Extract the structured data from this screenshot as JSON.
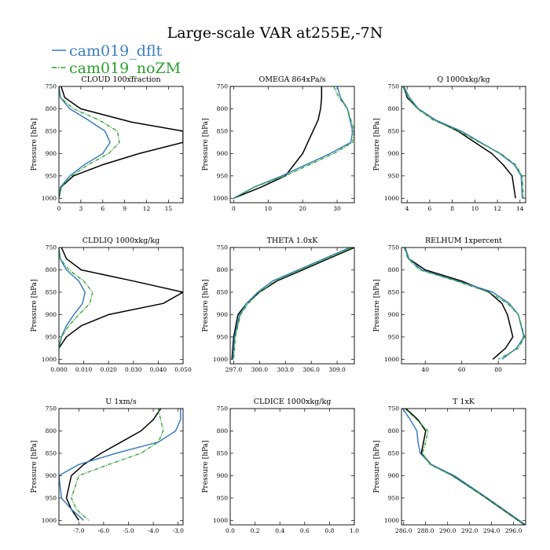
{
  "title": "Large-scale VAR at255E,-7N",
  "legend": [
    {
      "name": "cam019_dflt",
      "color": "#3a7dc0",
      "dash": ""
    },
    {
      "name": "cam019_noZM",
      "color": "#2ca02c",
      "dash": "6,2,1.5,2"
    }
  ],
  "colors": {
    "obs": "#000000",
    "dflt": "#3a7dc0",
    "noZM": "#2ca02c"
  },
  "chart_data": [
    {
      "type": "line",
      "title": "CLOUD 100xfraction",
      "ylabel": "Pressure [hPa]",
      "xlim": [
        0,
        17
      ],
      "ylim": [
        1010,
        750
      ],
      "invert_y": true,
      "xticks": [
        0,
        3,
        6,
        9,
        12,
        15
      ],
      "xtick_labels": [
        "0",
        "3",
        "6",
        "9",
        "12",
        "15"
      ],
      "yticks": [
        750,
        800,
        850,
        900,
        950,
        1000
      ],
      "series": [
        {
          "key": "obs",
          "x": [
            0.3,
            0.8,
            3.0,
            10,
            17,
            17,
            11,
            6,
            2,
            0.3,
            0
          ],
          "y": [
            750,
            775,
            800,
            830,
            850,
            875,
            900,
            925,
            950,
            975,
            1000
          ]
        },
        {
          "key": "dflt",
          "x": [
            0,
            0.2,
            1.5,
            4,
            6.3,
            7.0,
            6.0,
            3.5,
            1.5,
            0.2,
            0
          ],
          "y": [
            750,
            775,
            800,
            825,
            850,
            875,
            900,
            925,
            950,
            975,
            1000
          ]
        },
        {
          "key": "noZM",
          "x": [
            0,
            0.2,
            2.0,
            5.5,
            8.0,
            8.3,
            6.8,
            4.0,
            1.8,
            0.3,
            0
          ],
          "y": [
            750,
            775,
            800,
            825,
            850,
            875,
            900,
            925,
            950,
            975,
            1000
          ]
        }
      ]
    },
    {
      "type": "line",
      "title": "OMEGA 864xPa/s",
      "ylabel": "",
      "xlim": [
        -1,
        35
      ],
      "ylim": [
        1010,
        750
      ],
      "invert_y": true,
      "xticks": [
        0,
        10,
        20,
        30
      ],
      "xtick_labels": [
        "0",
        "10",
        "20",
        "30"
      ],
      "yticks": [
        750,
        800,
        850,
        900,
        950,
        1000
      ],
      "series": [
        {
          "key": "obs",
          "x": [
            25.5,
            25.5,
            25.2,
            24.5,
            23,
            20,
            15,
            8,
            0
          ],
          "y": [
            750,
            775,
            800,
            825,
            850,
            900,
            950,
            975,
            1000
          ]
        },
        {
          "key": "dflt",
          "x": [
            30,
            31,
            33,
            34.5,
            34,
            28,
            14,
            6,
            0
          ],
          "y": [
            750,
            775,
            800,
            850,
            875,
            900,
            950,
            975,
            1000
          ]
        },
        {
          "key": "noZM",
          "x": [
            29,
            30.5,
            33,
            35,
            34.5,
            29,
            15,
            6,
            0
          ],
          "y": [
            750,
            775,
            800,
            850,
            875,
            900,
            950,
            975,
            1000
          ]
        }
      ]
    },
    {
      "type": "line",
      "title": "Q 1000xkg/kg",
      "ylabel": "",
      "xlim": [
        3.5,
        14.5
      ],
      "ylim": [
        1010,
        750
      ],
      "invert_y": true,
      "xticks": [
        4,
        6,
        8,
        10,
        12,
        14
      ],
      "xtick_labels": [
        "4",
        "6",
        "8",
        "10",
        "12",
        "14"
      ],
      "yticks": [
        750,
        800,
        850,
        900,
        950,
        1000
      ],
      "series": [
        {
          "key": "obs",
          "x": [
            3.7,
            4.0,
            5.0,
            6.5,
            8.5,
            10.0,
            11.5,
            12.5,
            13.3,
            13.6
          ],
          "y": [
            750,
            775,
            800,
            825,
            850,
            875,
            900,
            925,
            950,
            1000
          ]
        },
        {
          "key": "dflt",
          "x": [
            3.7,
            4.2,
            5.0,
            6.5,
            8.8,
            10.5,
            12.2,
            13.5,
            14.1,
            14.2
          ],
          "y": [
            750,
            775,
            800,
            825,
            850,
            875,
            900,
            925,
            950,
            1000
          ]
        },
        {
          "key": "noZM",
          "x": [
            3.6,
            4.1,
            4.9,
            6.3,
            8.6,
            10.4,
            12.3,
            13.6,
            14.2,
            14.3
          ],
          "y": [
            750,
            775,
            800,
            825,
            850,
            875,
            900,
            925,
            950,
            1000
          ]
        }
      ]
    },
    {
      "type": "line",
      "title": "CLDLIQ 1000xkg/kg",
      "ylabel": "Pressure [hPa]",
      "xlim": [
        0,
        0.05
      ],
      "ylim": [
        1010,
        750
      ],
      "invert_y": true,
      "xticks": [
        0,
        0.01,
        0.02,
        0.03,
        0.04,
        0.05
      ],
      "xtick_labels": [
        "0.000",
        "0.010",
        "0.020",
        "0.030",
        "0.040",
        "0.050"
      ],
      "yticks": [
        750,
        800,
        850,
        900,
        950,
        1000
      ],
      "series": [
        {
          "key": "obs",
          "x": [
            0.001,
            0.003,
            0.009,
            0.03,
            0.05,
            0.042,
            0.02,
            0.009,
            0.003,
            0
          ],
          "y": [
            750,
            775,
            800,
            825,
            850,
            875,
            900,
            925,
            950,
            975
          ]
        },
        {
          "key": "dflt",
          "x": [
            0,
            0.0005,
            0.003,
            0.008,
            0.0105,
            0.0095,
            0.006,
            0.003,
            0.001,
            0
          ],
          "y": [
            750,
            775,
            800,
            825,
            850,
            875,
            900,
            925,
            950,
            975
          ]
        },
        {
          "key": "noZM",
          "x": [
            0,
            0.0005,
            0.004,
            0.01,
            0.0135,
            0.0125,
            0.008,
            0.004,
            0.001,
            0
          ],
          "y": [
            750,
            775,
            800,
            825,
            850,
            875,
            900,
            925,
            950,
            975
          ]
        }
      ]
    },
    {
      "type": "line",
      "title": "THETA 1.0xK",
      "ylabel": "",
      "xlim": [
        296.6,
        311
      ],
      "ylim": [
        1010,
        750
      ],
      "invert_y": true,
      "xticks": [
        297,
        300,
        303,
        306,
        309
      ],
      "xtick_labels": [
        "297.0",
        "300.0",
        "303.0",
        "306.0",
        "309.0"
      ],
      "yticks": [
        750,
        800,
        850,
        900,
        950,
        1000
      ],
      "series": [
        {
          "key": "obs",
          "x": [
            311,
            308,
            305,
            302,
            300,
            298.5,
            297.5,
            297,
            296.8
          ],
          "y": [
            750,
            775,
            800,
            825,
            850,
            875,
            900,
            950,
            1000
          ]
        },
        {
          "key": "dflt",
          "x": [
            310.5,
            307.5,
            304.5,
            301.5,
            299.8,
            298.5,
            297.7,
            297.1,
            296.9
          ],
          "y": [
            750,
            775,
            800,
            825,
            850,
            875,
            900,
            950,
            1000
          ]
        },
        {
          "key": "noZM",
          "x": [
            310.8,
            307.8,
            304.8,
            301.8,
            300,
            298.7,
            297.8,
            297.2,
            297.0
          ],
          "y": [
            750,
            775,
            800,
            825,
            850,
            875,
            900,
            950,
            1000
          ]
        }
      ]
    },
    {
      "type": "line",
      "title": "RELHUM 1xpercent",
      "ylabel": "",
      "xlim": [
        27,
        95
      ],
      "ylim": [
        1010,
        750
      ],
      "invert_y": true,
      "xticks": [
        40,
        60,
        80
      ],
      "xtick_labels": [
        "40",
        "60",
        "80"
      ],
      "yticks": [
        750,
        800,
        850,
        900,
        950,
        1000
      ],
      "series": [
        {
          "key": "obs",
          "x": [
            29,
            31,
            40,
            60,
            75,
            82,
            85,
            88,
            84,
            77
          ],
          "y": [
            750,
            775,
            800,
            825,
            850,
            875,
            900,
            950,
            975,
            1000
          ]
        },
        {
          "key": "dflt",
          "x": [
            29,
            31,
            38,
            58,
            77,
            86,
            91,
            94,
            90,
            82
          ],
          "y": [
            750,
            775,
            800,
            825,
            850,
            875,
            900,
            950,
            975,
            1000
          ]
        },
        {
          "key": "noZM",
          "x": [
            28.5,
            30.5,
            37,
            57,
            75,
            85,
            91,
            94.5,
            91,
            80
          ],
          "y": [
            750,
            775,
            800,
            825,
            850,
            875,
            900,
            950,
            975,
            1000
          ]
        }
      ]
    },
    {
      "type": "line",
      "title": "U 1xm/s",
      "ylabel": "Pressure [hPa]",
      "xlim": [
        -7.8,
        -2.8
      ],
      "ylim": [
        1010,
        750
      ],
      "invert_y": true,
      "xticks": [
        -7,
        -6,
        -5,
        -4,
        -3
      ],
      "xtick_labels": [
        "-7.0",
        "-6.0",
        "-5.0",
        "-4.0",
        "-3.0"
      ],
      "yticks": [
        750,
        800,
        850,
        900,
        950,
        1000
      ],
      "series": [
        {
          "key": "obs",
          "x": [
            -3.7,
            -4.0,
            -4.5,
            -5.3,
            -6.1,
            -6.8,
            -7.3,
            -7.5,
            -7.3,
            -7.0
          ],
          "y": [
            750,
            775,
            800,
            825,
            850,
            875,
            900,
            950,
            975,
            1000
          ]
        },
        {
          "key": "dflt",
          "x": [
            -2.9,
            -2.9,
            -3.1,
            -3.8,
            -5.5,
            -7.0,
            -7.8,
            -7.7,
            -7.3,
            -6.8
          ],
          "y": [
            750,
            775,
            800,
            825,
            850,
            875,
            900,
            950,
            975,
            1000
          ]
        },
        {
          "key": "noZM",
          "x": [
            -3.8,
            -3.7,
            -3.6,
            -3.8,
            -4.5,
            -5.8,
            -7.0,
            -7.3,
            -7.1,
            -6.6
          ],
          "y": [
            750,
            775,
            800,
            825,
            850,
            875,
            900,
            950,
            975,
            1000
          ]
        }
      ]
    },
    {
      "type": "line",
      "title": "CLDICE 1000xkg/kg",
      "ylabel": "",
      "xlim": [
        0,
        1
      ],
      "ylim": [
        1010,
        750
      ],
      "invert_y": true,
      "xticks": [
        0,
        0.2,
        0.4,
        0.6,
        0.8,
        1.0
      ],
      "xtick_labels": [
        "0.0",
        "0.2",
        "0.4",
        "0.6",
        "0.8",
        "1.0"
      ],
      "yticks": [
        750,
        800,
        850,
        900,
        950,
        1000
      ],
      "series": []
    },
    {
      "type": "line",
      "title": "T 1xK",
      "ylabel": "",
      "xlim": [
        285.8,
        297.1
      ],
      "ylim": [
        1010,
        750
      ],
      "invert_y": true,
      "xticks": [
        286,
        288,
        290,
        292,
        294,
        296
      ],
      "xtick_labels": [
        "286.0",
        "288.0",
        "290.0",
        "292.0",
        "294.0",
        "296.0"
      ],
      "yticks": [
        750,
        800,
        850,
        900,
        950,
        1000
      ],
      "series": [
        {
          "key": "obs",
          "x": [
            286.2,
            287.3,
            288.0,
            287.8,
            287.6,
            288.5,
            290.5,
            293.5,
            297.0
          ],
          "y": [
            750,
            775,
            800,
            825,
            850,
            875,
            900,
            950,
            1010
          ]
        },
        {
          "key": "dflt",
          "x": [
            285.9,
            286.6,
            287.2,
            287.3,
            287.5,
            288.5,
            290.6,
            293.6,
            297.1
          ],
          "y": [
            750,
            775,
            800,
            825,
            850,
            875,
            900,
            950,
            1010
          ]
        },
        {
          "key": "noZM",
          "x": [
            286.1,
            287.2,
            288.2,
            288.0,
            287.7,
            288.4,
            290.4,
            293.5,
            297.0
          ],
          "y": [
            750,
            775,
            800,
            825,
            850,
            875,
            900,
            950,
            1010
          ]
        }
      ]
    }
  ]
}
